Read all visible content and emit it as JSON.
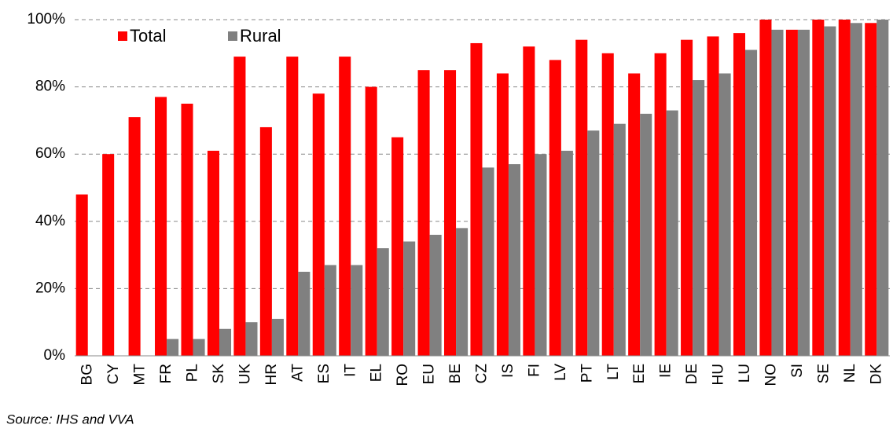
{
  "chart_data": {
    "type": "bar",
    "categories": [
      "BG",
      "CY",
      "MT",
      "FR",
      "PL",
      "SK",
      "UK",
      "HR",
      "AT",
      "ES",
      "IT",
      "EL",
      "RO",
      "EU",
      "BE",
      "CZ",
      "IS",
      "FI",
      "LV",
      "PT",
      "LT",
      "EE",
      "IE",
      "DE",
      "HU",
      "LU",
      "NO",
      "SI",
      "SE",
      "NL",
      "DK"
    ],
    "series": [
      {
        "name": "Total",
        "color": "#ff0000",
        "values": [
          48,
          60,
          71,
          77,
          75,
          61,
          89,
          68,
          89,
          78,
          89,
          80,
          65,
          85,
          85,
          93,
          84,
          92,
          88,
          94,
          90,
          84,
          90,
          94,
          95,
          96,
          100,
          97,
          100,
          100,
          99
        ]
      },
      {
        "name": "Rural",
        "color": "#808080",
        "values": [
          0,
          0,
          0,
          5,
          5,
          8,
          10,
          11,
          25,
          27,
          27,
          32,
          34,
          36,
          38,
          56,
          57,
          60,
          61,
          67,
          69,
          72,
          73,
          82,
          84,
          91,
          97,
          97,
          98,
          99,
          100
        ]
      }
    ],
    "ylim": [
      0,
      100
    ],
    "yticks": [
      {
        "value": 0,
        "label": "0%"
      },
      {
        "value": 20,
        "label": "20%"
      },
      {
        "value": 40,
        "label": "40%"
      },
      {
        "value": 60,
        "label": "60%"
      },
      {
        "value": 80,
        "label": "80%"
      },
      {
        "value": 100,
        "label": "100%"
      }
    ],
    "grid": true,
    "legend": "top-left",
    "source": "Source: IHS and VVA"
  }
}
